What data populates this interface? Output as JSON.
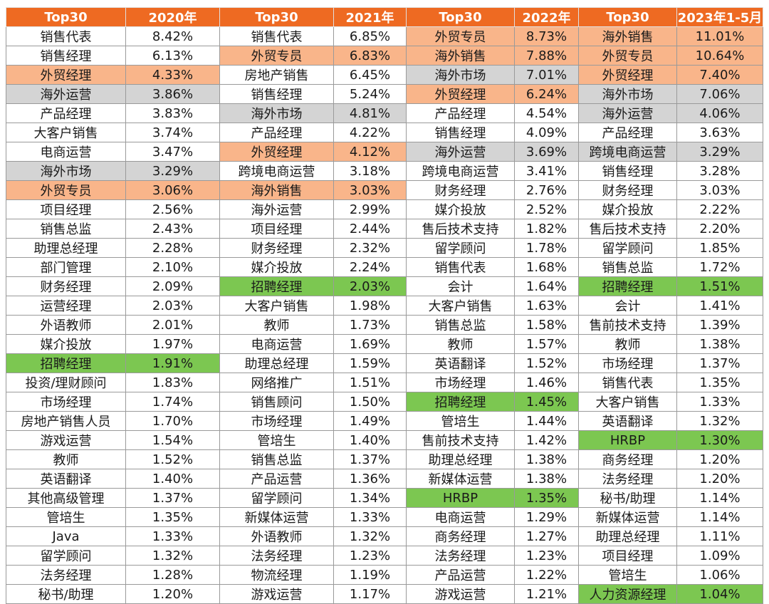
{
  "headers": [
    "Top30",
    "2020年",
    "Top30",
    "2021年",
    "Top30",
    "2022年",
    "Top30",
    "2023年1-5月"
  ],
  "rows": [
    [
      [
        "销售代表",
        ""
      ],
      [
        "8.42%",
        ""
      ],
      [
        "销售代表",
        ""
      ],
      [
        "6.85%",
        ""
      ],
      [
        "外贸专员",
        "orange"
      ],
      [
        "8.73%",
        "orange"
      ],
      [
        "海外销售",
        "orange"
      ],
      [
        "11.01%",
        "orange"
      ]
    ],
    [
      [
        "销售经理",
        ""
      ],
      [
        "6.13%",
        ""
      ],
      [
        "外贸专员",
        "orange"
      ],
      [
        "6.83%",
        "orange"
      ],
      [
        "海外销售",
        "orange"
      ],
      [
        "7.88%",
        "orange"
      ],
      [
        "外贸专员",
        "orange"
      ],
      [
        "10.64%",
        "orange"
      ]
    ],
    [
      [
        "外贸经理",
        "orange"
      ],
      [
        "4.33%",
        "orange"
      ],
      [
        "房地产销售",
        ""
      ],
      [
        "6.45%",
        ""
      ],
      [
        "海外市场",
        "gray"
      ],
      [
        "7.01%",
        "gray"
      ],
      [
        "外贸经理",
        "orange"
      ],
      [
        "7.40%",
        "orange"
      ]
    ],
    [
      [
        "海外运营",
        "gray"
      ],
      [
        "3.86%",
        "gray"
      ],
      [
        "销售经理",
        ""
      ],
      [
        "5.24%",
        ""
      ],
      [
        "外贸经理",
        "orange"
      ],
      [
        "6.24%",
        "orange"
      ],
      [
        "海外市场",
        "gray"
      ],
      [
        "7.06%",
        "gray"
      ]
    ],
    [
      [
        "产品经理",
        ""
      ],
      [
        "3.83%",
        ""
      ],
      [
        "海外市场",
        "gray"
      ],
      [
        "4.81%",
        "gray"
      ],
      [
        "产品经理",
        ""
      ],
      [
        "4.54%",
        ""
      ],
      [
        "海外运营",
        "gray"
      ],
      [
        "4.06%",
        "gray"
      ]
    ],
    [
      [
        "大客户销售",
        ""
      ],
      [
        "3.74%",
        ""
      ],
      [
        "产品经理",
        ""
      ],
      [
        "4.22%",
        ""
      ],
      [
        "销售经理",
        ""
      ],
      [
        "4.09%",
        ""
      ],
      [
        "产品经理",
        ""
      ],
      [
        "3.63%",
        ""
      ]
    ],
    [
      [
        "电商运营",
        ""
      ],
      [
        "3.47%",
        ""
      ],
      [
        "外贸经理",
        "orange"
      ],
      [
        "4.12%",
        "orange"
      ],
      [
        "海外运营",
        "gray"
      ],
      [
        "3.69%",
        "gray"
      ],
      [
        "跨境电商运营",
        "gray"
      ],
      [
        "3.29%",
        "gray"
      ]
    ],
    [
      [
        "海外市场",
        "gray"
      ],
      [
        "3.29%",
        "gray"
      ],
      [
        "跨境电商运营",
        ""
      ],
      [
        "3.18%",
        ""
      ],
      [
        "跨境电商运营",
        ""
      ],
      [
        "3.41%",
        ""
      ],
      [
        "销售经理",
        ""
      ],
      [
        "3.28%",
        ""
      ]
    ],
    [
      [
        "外贸专员",
        "orange"
      ],
      [
        "3.06%",
        "orange"
      ],
      [
        "海外销售",
        "orange"
      ],
      [
        "3.03%",
        "orange"
      ],
      [
        "财务经理",
        ""
      ],
      [
        "2.76%",
        ""
      ],
      [
        "财务经理",
        ""
      ],
      [
        "3.03%",
        ""
      ]
    ],
    [
      [
        "项目经理",
        ""
      ],
      [
        "2.56%",
        ""
      ],
      [
        "海外运营",
        ""
      ],
      [
        "2.99%",
        ""
      ],
      [
        "媒介投放",
        ""
      ],
      [
        "2.52%",
        ""
      ],
      [
        "媒介投放",
        ""
      ],
      [
        "2.22%",
        ""
      ]
    ],
    [
      [
        "销售总监",
        ""
      ],
      [
        "2.43%",
        ""
      ],
      [
        "项目经理",
        ""
      ],
      [
        "2.44%",
        ""
      ],
      [
        "售后技术支持",
        ""
      ],
      [
        "1.82%",
        ""
      ],
      [
        "售后技术支持",
        ""
      ],
      [
        "2.20%",
        ""
      ]
    ],
    [
      [
        "助理总经理",
        ""
      ],
      [
        "2.28%",
        ""
      ],
      [
        "财务经理",
        ""
      ],
      [
        "2.32%",
        ""
      ],
      [
        "留学顾问",
        ""
      ],
      [
        "1.78%",
        ""
      ],
      [
        "留学顾问",
        ""
      ],
      [
        "1.85%",
        ""
      ]
    ],
    [
      [
        "部门管理",
        ""
      ],
      [
        "2.10%",
        ""
      ],
      [
        "媒介投放",
        ""
      ],
      [
        "2.24%",
        ""
      ],
      [
        "销售代表",
        ""
      ],
      [
        "1.68%",
        ""
      ],
      [
        "销售总监",
        ""
      ],
      [
        "1.72%",
        ""
      ]
    ],
    [
      [
        "财务经理",
        ""
      ],
      [
        "2.09%",
        ""
      ],
      [
        "招聘经理",
        "green"
      ],
      [
        "2.03%",
        "green"
      ],
      [
        "会计",
        ""
      ],
      [
        "1.64%",
        ""
      ],
      [
        "招聘经理",
        "green"
      ],
      [
        "1.51%",
        "green"
      ]
    ],
    [
      [
        "运营经理",
        ""
      ],
      [
        "2.03%",
        ""
      ],
      [
        "大客户销售",
        ""
      ],
      [
        "1.98%",
        ""
      ],
      [
        "大客户销售",
        ""
      ],
      [
        "1.63%",
        ""
      ],
      [
        "会计",
        ""
      ],
      [
        "1.41%",
        ""
      ]
    ],
    [
      [
        "外语教师",
        ""
      ],
      [
        "2.01%",
        ""
      ],
      [
        "教师",
        ""
      ],
      [
        "1.73%",
        ""
      ],
      [
        "销售总监",
        ""
      ],
      [
        "1.58%",
        ""
      ],
      [
        "售前技术支持",
        ""
      ],
      [
        "1.39%",
        ""
      ]
    ],
    [
      [
        "媒介投放",
        ""
      ],
      [
        "1.97%",
        ""
      ],
      [
        "电商运营",
        ""
      ],
      [
        "1.69%",
        ""
      ],
      [
        "教师",
        ""
      ],
      [
        "1.57%",
        ""
      ],
      [
        "教师",
        ""
      ],
      [
        "1.38%",
        ""
      ]
    ],
    [
      [
        "招聘经理",
        "green"
      ],
      [
        "1.91%",
        "green"
      ],
      [
        "助理总经理",
        ""
      ],
      [
        "1.59%",
        ""
      ],
      [
        "英语翻译",
        ""
      ],
      [
        "1.52%",
        ""
      ],
      [
        "市场经理",
        ""
      ],
      [
        "1.37%",
        ""
      ]
    ],
    [
      [
        "投资/理财顾问",
        ""
      ],
      [
        "1.83%",
        ""
      ],
      [
        "网络推广",
        ""
      ],
      [
        "1.51%",
        ""
      ],
      [
        "市场经理",
        ""
      ],
      [
        "1.46%",
        ""
      ],
      [
        "销售代表",
        ""
      ],
      [
        "1.35%",
        ""
      ]
    ],
    [
      [
        "市场经理",
        ""
      ],
      [
        "1.74%",
        ""
      ],
      [
        "销售顾问",
        ""
      ],
      [
        "1.50%",
        ""
      ],
      [
        "招聘经理",
        "green"
      ],
      [
        "1.45%",
        "green"
      ],
      [
        "大客户销售",
        ""
      ],
      [
        "1.33%",
        ""
      ]
    ],
    [
      [
        "房地产销售人员",
        ""
      ],
      [
        "1.70%",
        ""
      ],
      [
        "市场经理",
        ""
      ],
      [
        "1.49%",
        ""
      ],
      [
        "管培生",
        ""
      ],
      [
        "1.44%",
        ""
      ],
      [
        "英语翻译",
        ""
      ],
      [
        "1.32%",
        ""
      ]
    ],
    [
      [
        "游戏运营",
        ""
      ],
      [
        "1.54%",
        ""
      ],
      [
        "管培生",
        ""
      ],
      [
        "1.40%",
        ""
      ],
      [
        "售前技术支持",
        ""
      ],
      [
        "1.42%",
        ""
      ],
      [
        "HRBP",
        "green"
      ],
      [
        "1.30%",
        "green"
      ]
    ],
    [
      [
        "教师",
        ""
      ],
      [
        "1.52%",
        ""
      ],
      [
        "销售总监",
        ""
      ],
      [
        "1.37%",
        ""
      ],
      [
        "助理总经理",
        ""
      ],
      [
        "1.38%",
        ""
      ],
      [
        "商务经理",
        ""
      ],
      [
        "1.20%",
        ""
      ]
    ],
    [
      [
        "英语翻译",
        ""
      ],
      [
        "1.40%",
        ""
      ],
      [
        "产品运营",
        ""
      ],
      [
        "1.36%",
        ""
      ],
      [
        "新媒体运营",
        ""
      ],
      [
        "1.38%",
        ""
      ],
      [
        "法务经理",
        ""
      ],
      [
        "1.20%",
        ""
      ]
    ],
    [
      [
        "其他高级管理",
        ""
      ],
      [
        "1.37%",
        ""
      ],
      [
        "留学顾问",
        ""
      ],
      [
        "1.34%",
        ""
      ],
      [
        "HRBP",
        "green"
      ],
      [
        "1.35%",
        "green"
      ],
      [
        "秘书/助理",
        ""
      ],
      [
        "1.14%",
        ""
      ]
    ],
    [
      [
        "管培生",
        ""
      ],
      [
        "1.35%",
        ""
      ],
      [
        "新媒体运营",
        ""
      ],
      [
        "1.33%",
        ""
      ],
      [
        "电商运营",
        ""
      ],
      [
        "1.29%",
        ""
      ],
      [
        "新媒体运营",
        ""
      ],
      [
        "1.14%",
        ""
      ]
    ],
    [
      [
        "Java",
        ""
      ],
      [
        "1.33%",
        ""
      ],
      [
        "外语教师",
        ""
      ],
      [
        "1.32%",
        ""
      ],
      [
        "商务经理",
        ""
      ],
      [
        "1.27%",
        ""
      ],
      [
        "助理总经理",
        ""
      ],
      [
        "1.11%",
        ""
      ]
    ],
    [
      [
        "留学顾问",
        ""
      ],
      [
        "1.32%",
        ""
      ],
      [
        "法务经理",
        ""
      ],
      [
        "1.23%",
        ""
      ],
      [
        "法务经理",
        ""
      ],
      [
        "1.23%",
        ""
      ],
      [
        "项目经理",
        ""
      ],
      [
        "1.09%",
        ""
      ]
    ],
    [
      [
        "法务经理",
        ""
      ],
      [
        "1.28%",
        ""
      ],
      [
        "物流经理",
        ""
      ],
      [
        "1.19%",
        ""
      ],
      [
        "产品运营",
        ""
      ],
      [
        "1.22%",
        ""
      ],
      [
        "管培生",
        ""
      ],
      [
        "1.06%",
        ""
      ]
    ],
    [
      [
        "秘书/助理",
        ""
      ],
      [
        "1.20%",
        ""
      ],
      [
        "游戏运营",
        ""
      ],
      [
        "1.17%",
        ""
      ],
      [
        "游戏运营",
        ""
      ],
      [
        "1.21%",
        ""
      ],
      [
        "人力资源经理",
        "green"
      ],
      [
        "1.04%",
        "green"
      ]
    ]
  ],
  "colors": {
    "header": "#ee6a22",
    "orange": "#f9b58a",
    "gray": "#d4d4d4",
    "green": "#7cc751"
  }
}
